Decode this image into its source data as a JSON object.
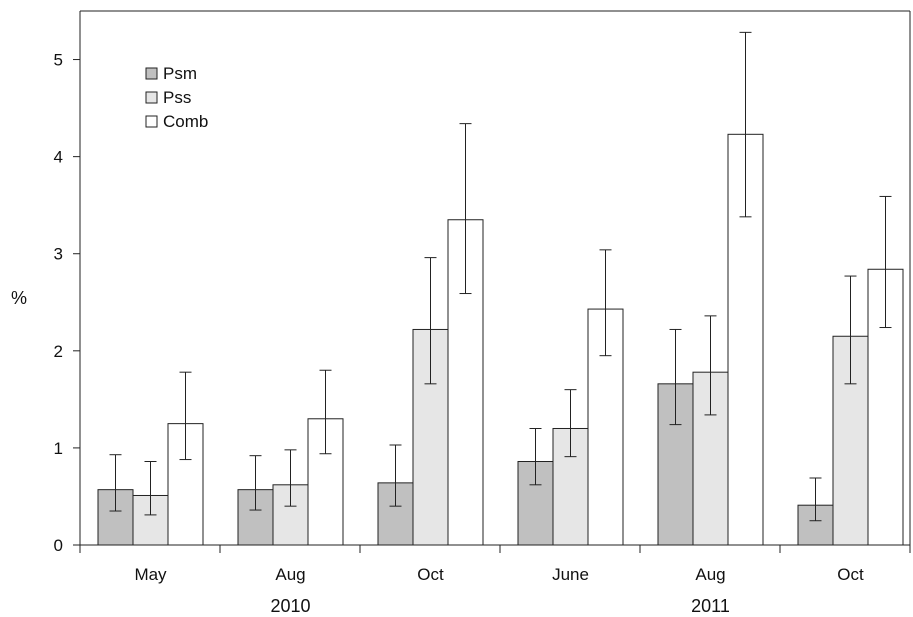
{
  "chart_data": {
    "type": "bar",
    "title": "",
    "xlabel": "",
    "ylabel": "%",
    "ylim": [
      0,
      5.5
    ],
    "yticks": [
      0,
      1,
      2,
      3,
      4,
      5
    ],
    "categories": [
      "May",
      "Aug",
      "Oct",
      "June",
      "Aug",
      "Oct"
    ],
    "category_groups": [
      {
        "label": "2010",
        "categories": [
          0,
          1,
          2
        ]
      },
      {
        "label": "2011",
        "categories": [
          3,
          4,
          5
        ]
      }
    ],
    "series": [
      {
        "name": "Psm",
        "color": "#c0c0c0",
        "values": [
          0.57,
          0.57,
          0.64,
          0.86,
          1.66,
          0.41
        ],
        "error_low": [
          0.35,
          0.36,
          0.4,
          0.62,
          1.24,
          0.25
        ],
        "error_high": [
          0.93,
          0.92,
          1.03,
          1.2,
          2.22,
          0.69
        ]
      },
      {
        "name": "Pss",
        "color": "#e6e6e6",
        "values": [
          0.51,
          0.62,
          2.22,
          1.2,
          1.78,
          2.15
        ],
        "error_low": [
          0.31,
          0.4,
          1.66,
          0.91,
          1.34,
          1.66
        ],
        "error_high": [
          0.86,
          0.98,
          2.96,
          1.6,
          2.36,
          2.77
        ]
      },
      {
        "name": "Comb",
        "color": "#ffffff",
        "values": [
          1.25,
          1.3,
          3.35,
          2.43,
          4.23,
          2.84
        ],
        "error_low": [
          0.88,
          0.94,
          2.59,
          1.95,
          3.38,
          2.24
        ],
        "error_high": [
          1.78,
          1.8,
          4.34,
          3.04,
          5.28,
          3.59
        ]
      }
    ],
    "legend_position": "top-left",
    "grid": false
  }
}
